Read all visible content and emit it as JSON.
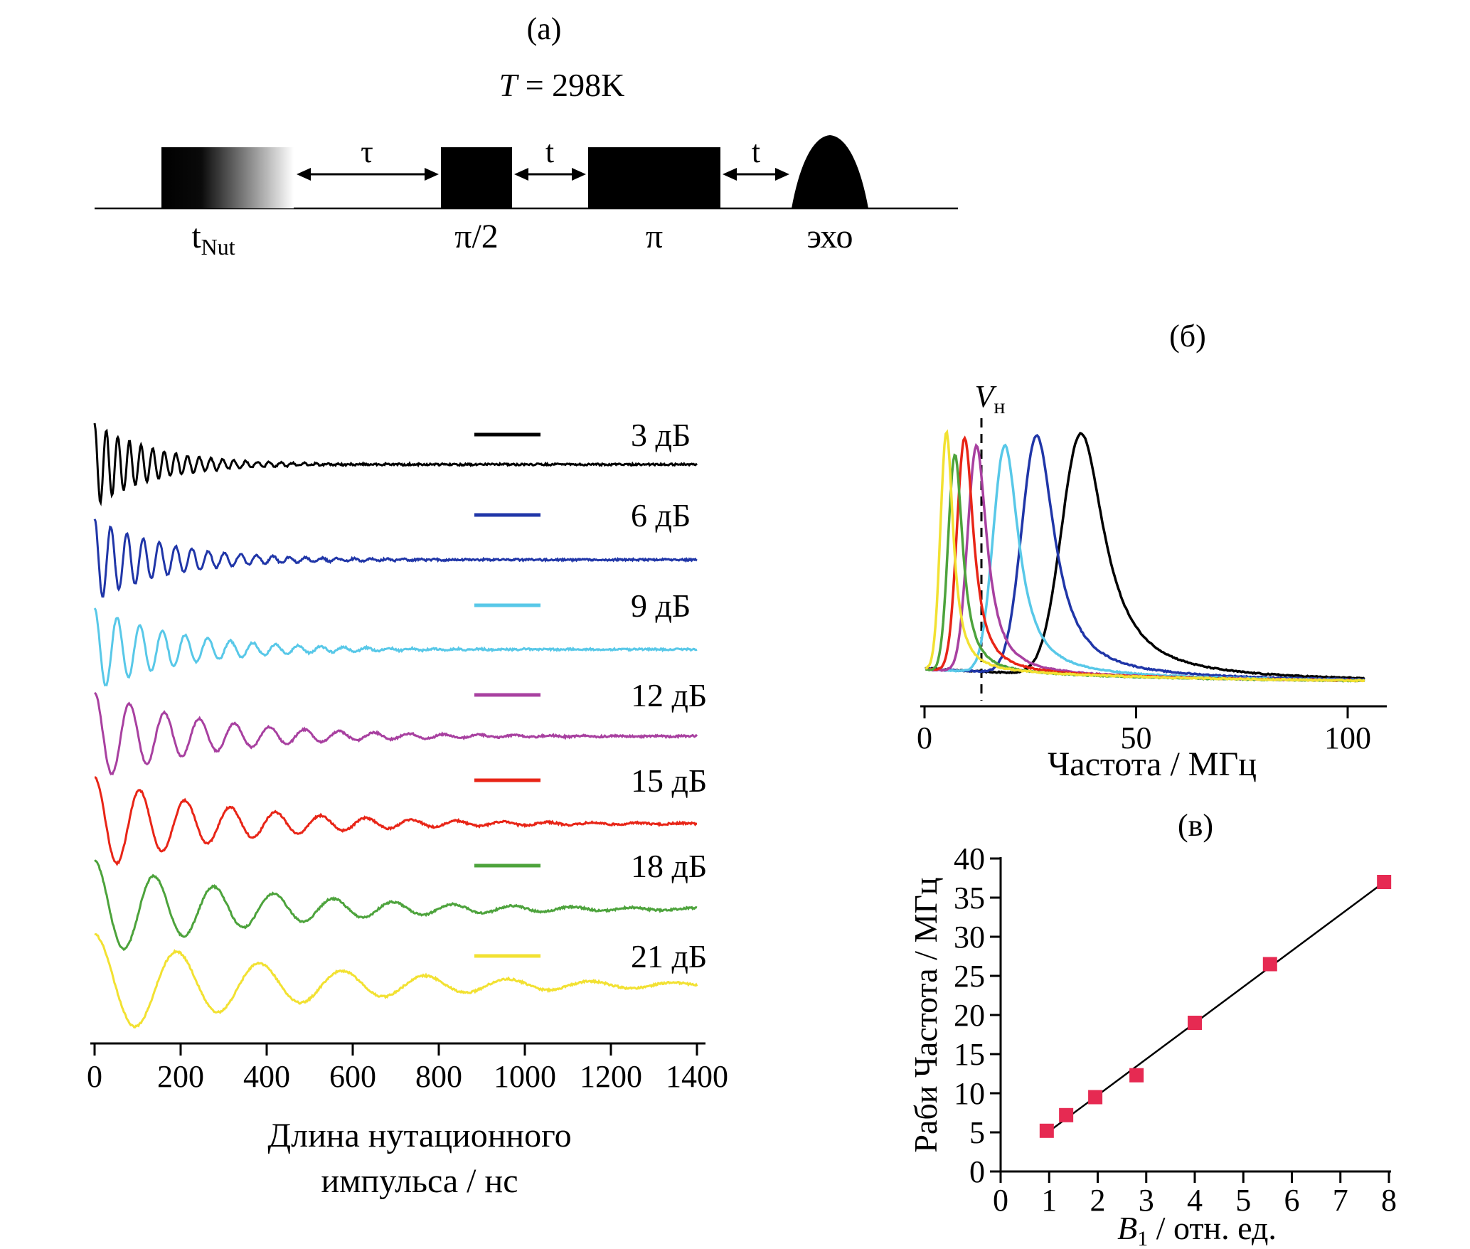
{
  "figure": {
    "panel_a_label": "(а)",
    "panel_b_label": "(б)",
    "panel_c_label": "(в)"
  },
  "panel_a": {
    "temperature_prefix": "T",
    "temperature_suffix": " = 298K",
    "tau_label": "τ",
    "t_label_1": "t",
    "t_label_2": "t",
    "nut_pulse_main": "t",
    "nut_pulse_sub": "Nut",
    "pi_half_label": "π/2",
    "pi_label": "π",
    "echo_label": "эхо"
  },
  "panel_b": {
    "vh_main": "V",
    "vh_sub": "н"
  },
  "panel_c": {
    "xlabel_main": "B",
    "xlabel_sub": "1",
    "xlabel_suffix": " / отн. ед."
  },
  "chart_data": [
    {
      "id": "nutation_traces",
      "type": "line",
      "xlabel": "Длина нутационного импульса / нс",
      "xlabel_line1": "Длина нутационного",
      "xlabel_line2": "импульса / нс",
      "xlim": [
        0,
        1400
      ],
      "xticks": [
        0,
        200,
        400,
        600,
        800,
        1000,
        1200,
        1400
      ],
      "series": [
        {
          "name": "3 дБ",
          "color": "#000000",
          "rabi_frequency_mhz": 37.0
        },
        {
          "name": "6 дБ",
          "color": "#2036a8",
          "rabi_frequency_mhz": 26.5
        },
        {
          "name": "9 дБ",
          "color": "#58c8e8",
          "rabi_frequency_mhz": 19.0
        },
        {
          "name": "12 дБ",
          "color": "#a840a0",
          "rabi_frequency_mhz": 12.3
        },
        {
          "name": "15 дБ",
          "color": "#e82517",
          "rabi_frequency_mhz": 9.5
        },
        {
          "name": "18 дБ",
          "color": "#4da33c",
          "rabi_frequency_mhz": 7.2
        },
        {
          "name": "21 дБ",
          "color": "#f2e132",
          "rabi_frequency_mhz": 5.2
        }
      ]
    },
    {
      "id": "nutation_spectra",
      "type": "line",
      "xlabel": "Частота / МГц",
      "xlim": [
        0,
        105
      ],
      "xticks": [
        0,
        50,
        100
      ],
      "annotation": {
        "label": "Vн",
        "x_mhz": 13.5,
        "style": "dashed-vertical"
      },
      "series": [
        {
          "name": "3 дБ",
          "color": "#000000",
          "peak_mhz": 37.0
        },
        {
          "name": "6 дБ",
          "color": "#2036a8",
          "peak_mhz": 26.5
        },
        {
          "name": "9 дБ",
          "color": "#58c8e8",
          "peak_mhz": 19.0
        },
        {
          "name": "12 дБ",
          "color": "#a840a0",
          "peak_mhz": 12.3
        },
        {
          "name": "15 дБ",
          "color": "#e82517",
          "peak_mhz": 9.5
        },
        {
          "name": "18 дБ",
          "color": "#4da33c",
          "peak_mhz": 7.2
        },
        {
          "name": "21 дБ",
          "color": "#f2e132",
          "peak_mhz": 5.2
        }
      ]
    },
    {
      "id": "rabi_vs_b1",
      "type": "scatter",
      "xlabel": "B1 / отн. ед.",
      "ylabel": "Раби Частота / МГц",
      "xlim": [
        0,
        8
      ],
      "ylim": [
        0,
        40
      ],
      "xticks": [
        0,
        1,
        2,
        3,
        4,
        5,
        6,
        7,
        8
      ],
      "yticks": [
        0,
        5,
        10,
        15,
        20,
        25,
        30,
        35,
        40
      ],
      "marker": "square",
      "marker_color": "#e62a52",
      "line_color": "#000000",
      "x": [
        0.95,
        1.35,
        1.95,
        2.8,
        4.0,
        5.55,
        7.9
      ],
      "y": [
        5.2,
        7.2,
        9.5,
        12.3,
        19.0,
        26.5,
        37.0
      ]
    }
  ]
}
